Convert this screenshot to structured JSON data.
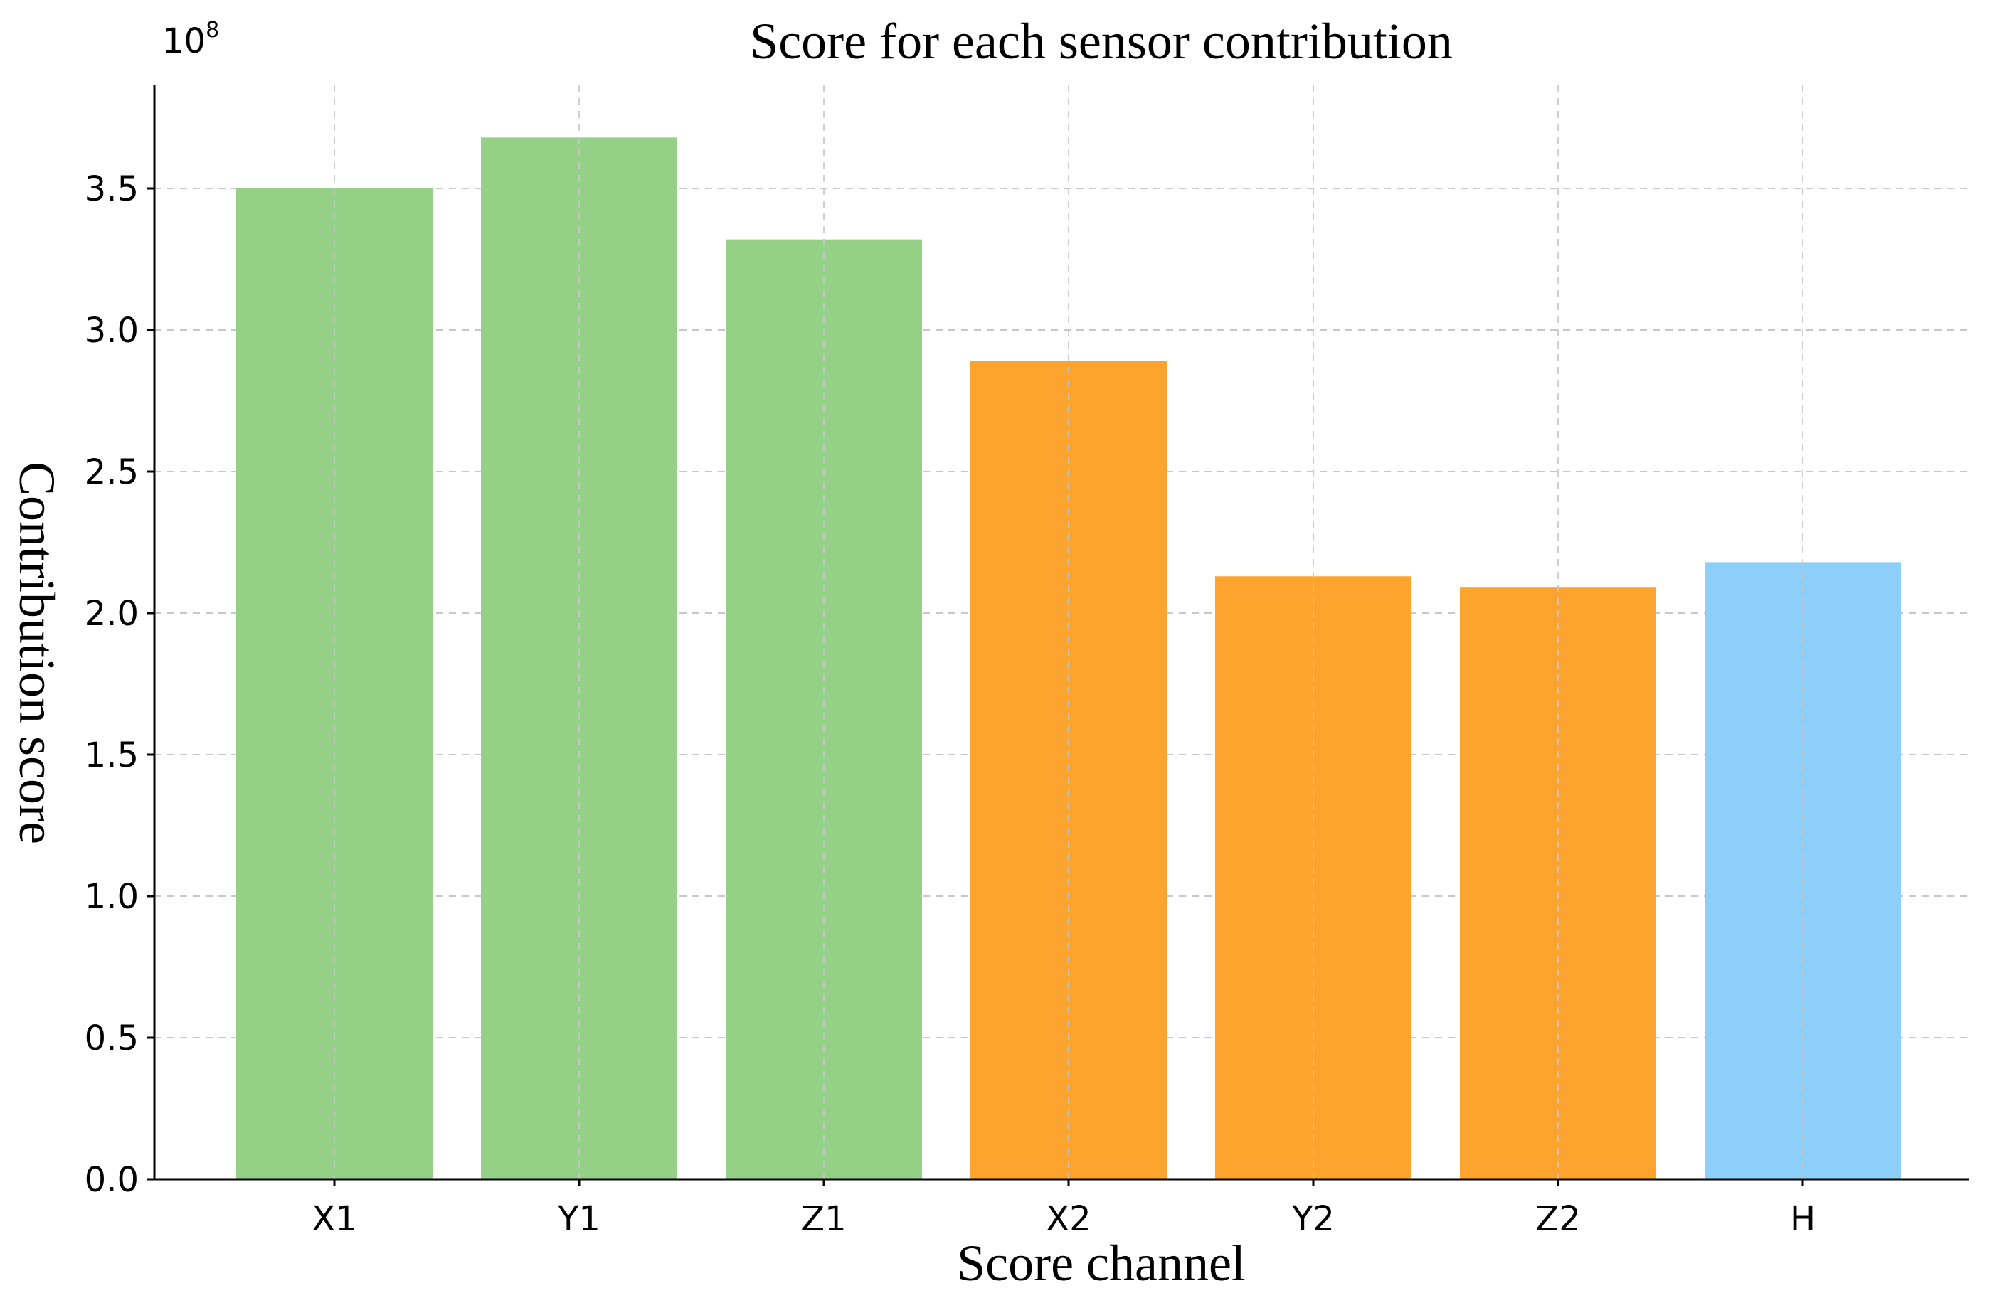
{
  "chart_data": {
    "type": "bar",
    "title": "Score for each sensor contribution",
    "xlabel": "Score channel",
    "ylabel": "Contribution score",
    "y_scale_label": "10",
    "y_scale_exponent": "8",
    "categories": [
      "X1",
      "Y1",
      "Z1",
      "X2",
      "Y2",
      "Z2",
      "H"
    ],
    "values": [
      3.5,
      3.68,
      3.32,
      2.89,
      2.13,
      2.09,
      2.18
    ],
    "bar_colors": [
      "#95d087",
      "#95d087",
      "#95d087",
      "#fda42e",
      "#fda42e",
      "#fda42e",
      "#8ecff9"
    ],
    "ylim": [
      0,
      3.8
    ],
    "yticks": [
      "0.0",
      "0.5",
      "1.0",
      "1.5",
      "2.0",
      "2.5",
      "3.0",
      "3.5"
    ],
    "grid": true,
    "grid_color": "#c8c8c8",
    "axis_color": "#000000"
  }
}
